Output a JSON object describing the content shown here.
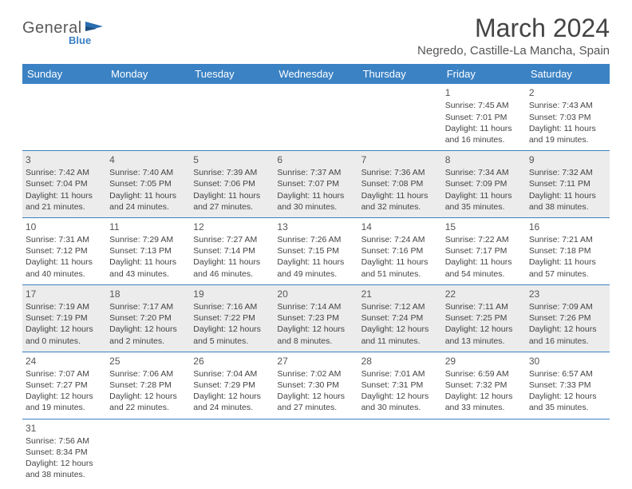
{
  "logo": {
    "main": "General",
    "sub": "Blue"
  },
  "title": "March 2024",
  "location": "Negredo, Castille-La Mancha, Spain",
  "colors": {
    "header_bg": "#3b82c4",
    "header_text": "#ffffff",
    "shaded_bg": "#ececec",
    "border": "#3b82c4",
    "text": "#444444"
  },
  "weekdays": [
    "Sunday",
    "Monday",
    "Tuesday",
    "Wednesday",
    "Thursday",
    "Friday",
    "Saturday"
  ],
  "weeks": [
    [
      null,
      null,
      null,
      null,
      null,
      {
        "n": "1",
        "sr": "Sunrise: 7:45 AM",
        "ss": "Sunset: 7:01 PM",
        "d1": "Daylight: 11 hours",
        "d2": "and 16 minutes."
      },
      {
        "n": "2",
        "sr": "Sunrise: 7:43 AM",
        "ss": "Sunset: 7:03 PM",
        "d1": "Daylight: 11 hours",
        "d2": "and 19 minutes."
      }
    ],
    [
      {
        "n": "3",
        "sr": "Sunrise: 7:42 AM",
        "ss": "Sunset: 7:04 PM",
        "d1": "Daylight: 11 hours",
        "d2": "and 21 minutes."
      },
      {
        "n": "4",
        "sr": "Sunrise: 7:40 AM",
        "ss": "Sunset: 7:05 PM",
        "d1": "Daylight: 11 hours",
        "d2": "and 24 minutes."
      },
      {
        "n": "5",
        "sr": "Sunrise: 7:39 AM",
        "ss": "Sunset: 7:06 PM",
        "d1": "Daylight: 11 hours",
        "d2": "and 27 minutes."
      },
      {
        "n": "6",
        "sr": "Sunrise: 7:37 AM",
        "ss": "Sunset: 7:07 PM",
        "d1": "Daylight: 11 hours",
        "d2": "and 30 minutes."
      },
      {
        "n": "7",
        "sr": "Sunrise: 7:36 AM",
        "ss": "Sunset: 7:08 PM",
        "d1": "Daylight: 11 hours",
        "d2": "and 32 minutes."
      },
      {
        "n": "8",
        "sr": "Sunrise: 7:34 AM",
        "ss": "Sunset: 7:09 PM",
        "d1": "Daylight: 11 hours",
        "d2": "and 35 minutes."
      },
      {
        "n": "9",
        "sr": "Sunrise: 7:32 AM",
        "ss": "Sunset: 7:11 PM",
        "d1": "Daylight: 11 hours",
        "d2": "and 38 minutes."
      }
    ],
    [
      {
        "n": "10",
        "sr": "Sunrise: 7:31 AM",
        "ss": "Sunset: 7:12 PM",
        "d1": "Daylight: 11 hours",
        "d2": "and 40 minutes."
      },
      {
        "n": "11",
        "sr": "Sunrise: 7:29 AM",
        "ss": "Sunset: 7:13 PM",
        "d1": "Daylight: 11 hours",
        "d2": "and 43 minutes."
      },
      {
        "n": "12",
        "sr": "Sunrise: 7:27 AM",
        "ss": "Sunset: 7:14 PM",
        "d1": "Daylight: 11 hours",
        "d2": "and 46 minutes."
      },
      {
        "n": "13",
        "sr": "Sunrise: 7:26 AM",
        "ss": "Sunset: 7:15 PM",
        "d1": "Daylight: 11 hours",
        "d2": "and 49 minutes."
      },
      {
        "n": "14",
        "sr": "Sunrise: 7:24 AM",
        "ss": "Sunset: 7:16 PM",
        "d1": "Daylight: 11 hours",
        "d2": "and 51 minutes."
      },
      {
        "n": "15",
        "sr": "Sunrise: 7:22 AM",
        "ss": "Sunset: 7:17 PM",
        "d1": "Daylight: 11 hours",
        "d2": "and 54 minutes."
      },
      {
        "n": "16",
        "sr": "Sunrise: 7:21 AM",
        "ss": "Sunset: 7:18 PM",
        "d1": "Daylight: 11 hours",
        "d2": "and 57 minutes."
      }
    ],
    [
      {
        "n": "17",
        "sr": "Sunrise: 7:19 AM",
        "ss": "Sunset: 7:19 PM",
        "d1": "Daylight: 12 hours",
        "d2": "and 0 minutes."
      },
      {
        "n": "18",
        "sr": "Sunrise: 7:17 AM",
        "ss": "Sunset: 7:20 PM",
        "d1": "Daylight: 12 hours",
        "d2": "and 2 minutes."
      },
      {
        "n": "19",
        "sr": "Sunrise: 7:16 AM",
        "ss": "Sunset: 7:22 PM",
        "d1": "Daylight: 12 hours",
        "d2": "and 5 minutes."
      },
      {
        "n": "20",
        "sr": "Sunrise: 7:14 AM",
        "ss": "Sunset: 7:23 PM",
        "d1": "Daylight: 12 hours",
        "d2": "and 8 minutes."
      },
      {
        "n": "21",
        "sr": "Sunrise: 7:12 AM",
        "ss": "Sunset: 7:24 PM",
        "d1": "Daylight: 12 hours",
        "d2": "and 11 minutes."
      },
      {
        "n": "22",
        "sr": "Sunrise: 7:11 AM",
        "ss": "Sunset: 7:25 PM",
        "d1": "Daylight: 12 hours",
        "d2": "and 13 minutes."
      },
      {
        "n": "23",
        "sr": "Sunrise: 7:09 AM",
        "ss": "Sunset: 7:26 PM",
        "d1": "Daylight: 12 hours",
        "d2": "and 16 minutes."
      }
    ],
    [
      {
        "n": "24",
        "sr": "Sunrise: 7:07 AM",
        "ss": "Sunset: 7:27 PM",
        "d1": "Daylight: 12 hours",
        "d2": "and 19 minutes."
      },
      {
        "n": "25",
        "sr": "Sunrise: 7:06 AM",
        "ss": "Sunset: 7:28 PM",
        "d1": "Daylight: 12 hours",
        "d2": "and 22 minutes."
      },
      {
        "n": "26",
        "sr": "Sunrise: 7:04 AM",
        "ss": "Sunset: 7:29 PM",
        "d1": "Daylight: 12 hours",
        "d2": "and 24 minutes."
      },
      {
        "n": "27",
        "sr": "Sunrise: 7:02 AM",
        "ss": "Sunset: 7:30 PM",
        "d1": "Daylight: 12 hours",
        "d2": "and 27 minutes."
      },
      {
        "n": "28",
        "sr": "Sunrise: 7:01 AM",
        "ss": "Sunset: 7:31 PM",
        "d1": "Daylight: 12 hours",
        "d2": "and 30 minutes."
      },
      {
        "n": "29",
        "sr": "Sunrise: 6:59 AM",
        "ss": "Sunset: 7:32 PM",
        "d1": "Daylight: 12 hours",
        "d2": "and 33 minutes."
      },
      {
        "n": "30",
        "sr": "Sunrise: 6:57 AM",
        "ss": "Sunset: 7:33 PM",
        "d1": "Daylight: 12 hours",
        "d2": "and 35 minutes."
      }
    ],
    [
      {
        "n": "31",
        "sr": "Sunrise: 7:56 AM",
        "ss": "Sunset: 8:34 PM",
        "d1": "Daylight: 12 hours",
        "d2": "and 38 minutes."
      },
      null,
      null,
      null,
      null,
      null,
      null
    ]
  ],
  "shaded_rows": [
    1,
    3
  ]
}
